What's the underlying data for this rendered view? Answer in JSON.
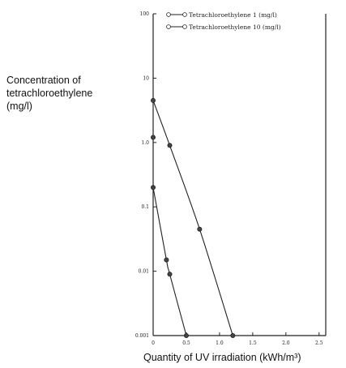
{
  "chart_data": {
    "type": "line",
    "title": "",
    "ylabel_lines": [
      "Concentration of",
      "tetrachloroethylene",
      "(mg/l)"
    ],
    "xlabel": "Quantity of UV irradiation (kWh/m³)",
    "x_ticks": [
      "0",
      "0.5",
      "1.0",
      "1.5",
      "2.0",
      "2.5"
    ],
    "y_ticks": [
      "0.001",
      "0.01",
      "0.1",
      "1.0",
      "10",
      "100"
    ],
    "xlim": [
      0,
      2.6
    ],
    "ylim": [
      0.001,
      100
    ],
    "y_scale": "log",
    "grid": false,
    "legend_position": "top",
    "series": [
      {
        "name": "Tetrachloroethylene  1 (mg/l)",
        "marker": "circle",
        "x": [
          0,
          0.2,
          0.25,
          0.5
        ],
        "y": [
          0.2,
          0.015,
          0.009,
          0.001
        ]
      },
      {
        "name": "Tetrachloroethylene 10 (mg/l)",
        "marker": "circle",
        "x": [
          0,
          0.25,
          0.7,
          1.2
        ],
        "y": [
          4.5,
          0.9,
          0.045,
          0.001
        ]
      },
      {
        "name": "",
        "marker": "circle",
        "x": [
          0
        ],
        "y": [
          1.2
        ]
      }
    ]
  }
}
